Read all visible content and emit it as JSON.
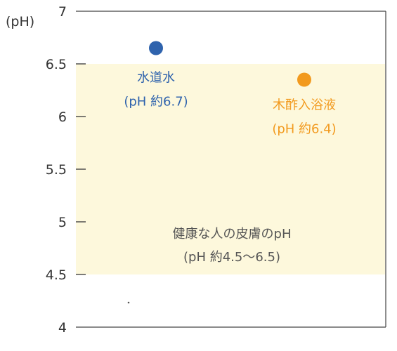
{
  "chart_data": {
    "type": "scatter",
    "ylabel": "(pH)",
    "ylim": [
      4,
      7
    ],
    "yticks": [
      {
        "value": 4,
        "label": "4"
      },
      {
        "value": 4.5,
        "label": "4.5"
      },
      {
        "value": 5,
        "label": "5"
      },
      {
        "value": 5.5,
        "label": "5.5"
      },
      {
        "value": 6,
        "label": "6"
      },
      {
        "value": 6.5,
        "label": "6.5"
      },
      {
        "value": 7,
        "label": "7"
      }
    ],
    "band": {
      "from": 4.5,
      "to": 6.5,
      "color": "#fdf8dc",
      "label_line1": "健康な人の皮膚のpH",
      "label_line2": "(pH 約4.5〜6.5)",
      "text_color": "#555555"
    },
    "points": [
      {
        "name": "水道水",
        "y": 6.65,
        "label_line1": "水道水",
        "label_line2": "(pH 約6.7)",
        "color": "#2f63ad"
      },
      {
        "name": "木酢入浴液",
        "y": 6.35,
        "label_line1": "木酢入浴液",
        "label_line2": "(pH 約6.4)",
        "color": "#f29a1e"
      }
    ],
    "grid": false,
    "legend": "none"
  }
}
